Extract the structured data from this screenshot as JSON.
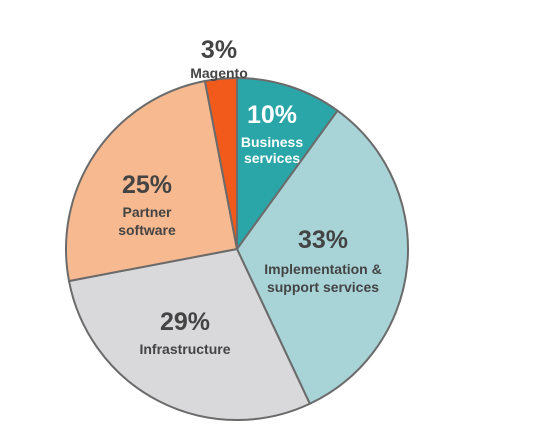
{
  "chart_data": {
    "type": "pie",
    "title": "",
    "slices": [
      {
        "percent_label": "10%",
        "label_lines": [
          "Business",
          "services"
        ],
        "value": 10,
        "color": "#2aa6a8",
        "text_color": "#ffffff"
      },
      {
        "percent_label": "33%",
        "label_lines": [
          "Implementation &",
          "support services"
        ],
        "value": 33,
        "color": "#a8d4d8",
        "text_color": "#444444"
      },
      {
        "percent_label": "29%",
        "label_lines": [
          "Infrastructure"
        ],
        "value": 29,
        "color": "#d9d9db",
        "text_color": "#444444"
      },
      {
        "percent_label": "25%",
        "label_lines": [
          "Partner",
          "software"
        ],
        "value": 25,
        "color": "#f7b98f",
        "text_color": "#444444"
      },
      {
        "percent_label": "3%",
        "label_lines": [
          "Magento"
        ],
        "value": 3,
        "color": "#f25a1c",
        "text_color": "#444444"
      }
    ]
  }
}
